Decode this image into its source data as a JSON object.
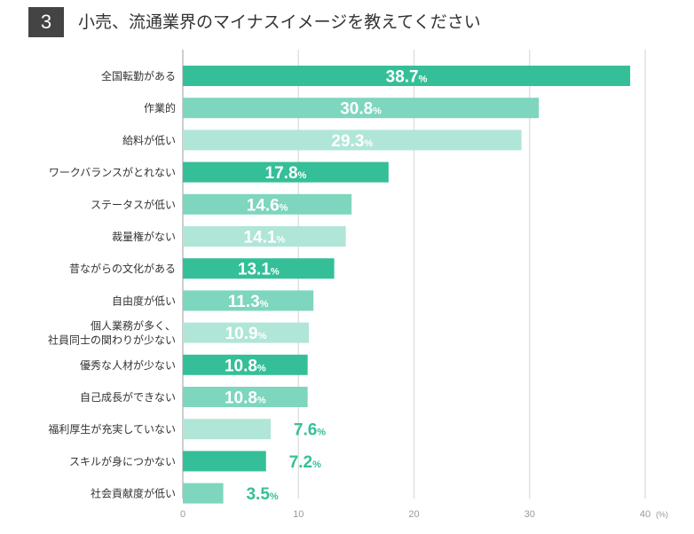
{
  "header": {
    "number": "3",
    "title": "小売、流通業界のマイナスイメージを教えてください"
  },
  "chart_data": {
    "type": "bar",
    "orientation": "horizontal",
    "title": "小売、流通業界のマイナスイメージを教えてください",
    "categories": [
      "全国転勤がある",
      "作業的",
      "給料が低い",
      "ワークバランスがとれない",
      "ステータスが低い",
      "裁量権がない",
      "昔ながらの文化がある",
      "自由度が低い",
      "個人業務が多く、\n社員同士の関わりが少ない",
      "優秀な人材が少ない",
      "自己成長ができない",
      "福利厚生が充実していない",
      "スキルが身につかない",
      "社会貢献度が低い"
    ],
    "values": [
      38.7,
      30.8,
      29.3,
      17.8,
      14.6,
      14.1,
      13.1,
      11.3,
      10.9,
      10.8,
      10.8,
      7.6,
      7.2,
      3.5
    ],
    "value_labels": [
      "38.7",
      "30.8",
      "29.3",
      "17.8",
      "14.6",
      "14.1",
      "13.1",
      "11.3",
      "10.9",
      "10.8",
      "10.8",
      "7.6",
      "7.2",
      "3.5"
    ],
    "value_suffix": "%",
    "xlim": [
      0,
      40
    ],
    "xticks": [
      "0",
      "10",
      "20",
      "30",
      "40"
    ],
    "x_unit": "(%)",
    "grid": true,
    "colors": [
      "#35bf98",
      "#7dd6bd",
      "#b0e6d7"
    ],
    "label_text_color": "#ffffff",
    "outside_label_color": "#35bf98"
  }
}
